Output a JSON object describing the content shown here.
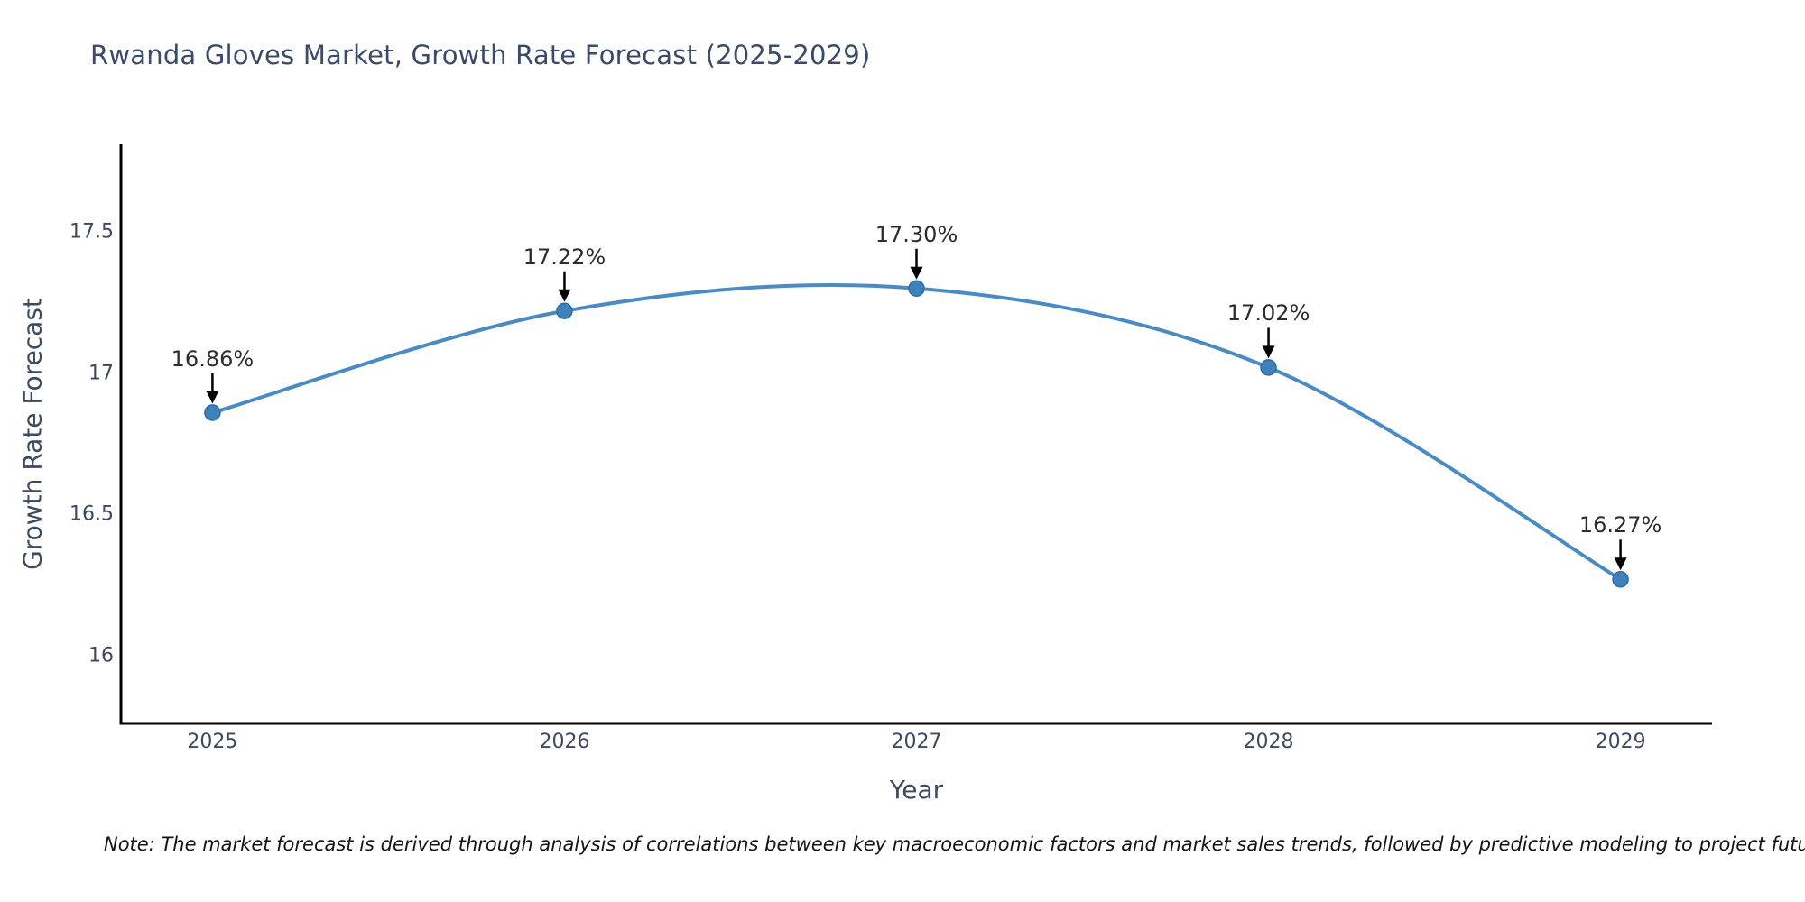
{
  "chart_data": {
    "type": "line",
    "title": "Rwanda Gloves Market, Growth Rate Forecast (2025-2029)",
    "xlabel": "Year",
    "ylabel": "Growth Rate Forecast",
    "x": [
      2025,
      2026,
      2027,
      2028,
      2029
    ],
    "series": [
      {
        "name": "Growth Rate Forecast",
        "values": [
          16.86,
          17.22,
          17.3,
          17.02,
          16.27
        ]
      }
    ],
    "point_labels": [
      "16.86%",
      "17.22%",
      "17.30%",
      "17.02%",
      "16.27%"
    ],
    "xtick_labels": [
      "2025",
      "2026",
      "2027",
      "2028",
      "2029"
    ],
    "ytick_values": [
      16,
      16.5,
      17,
      17.5
    ],
    "ytick_labels": [
      "16",
      "16.5",
      "17",
      "17.5"
    ],
    "xlim": [
      2024.74,
      2029.26
    ],
    "ylim": [
      15.76,
      17.81
    ],
    "grid": false,
    "legend": false,
    "line_shape": "spline",
    "colors": {
      "line": "#4a8bc4",
      "marker": "#3f81ba",
      "marker_edge": "#2e6da4",
      "axis": "#000000",
      "arrow": "#000000"
    }
  },
  "note": "Note: The market forecast is derived through analysis of correlations between key macroeconomic factors and market sales trends, followed by predictive modeling to project future sales."
}
